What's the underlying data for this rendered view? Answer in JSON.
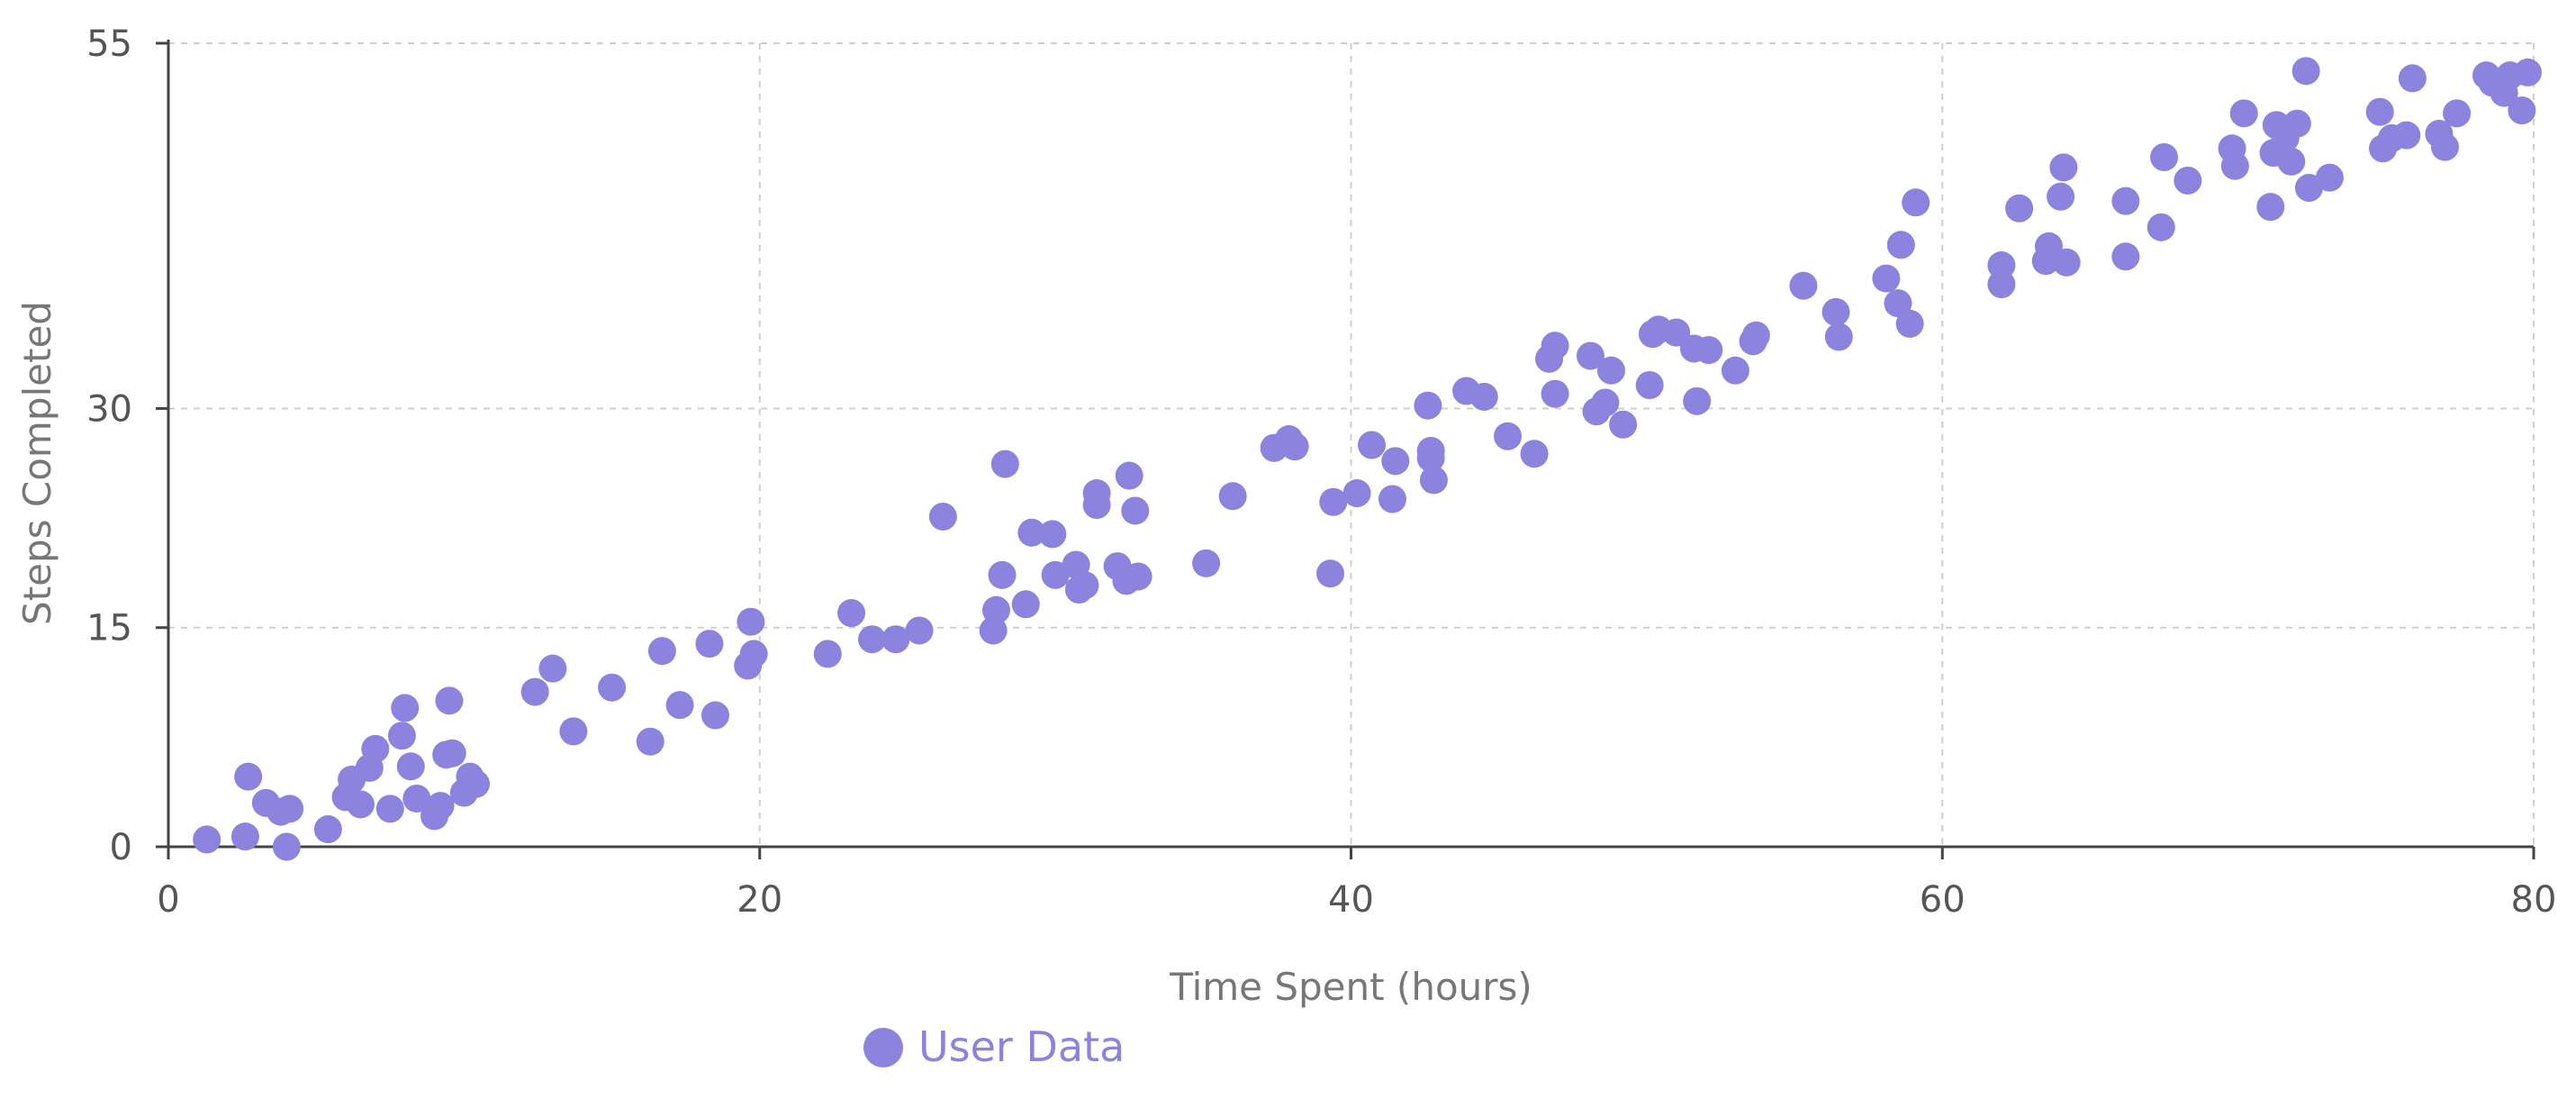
{
  "chart_data": {
    "type": "scatter",
    "title": "",
    "xlabel": "Time Spent (hours)",
    "ylabel": "Steps Completed",
    "xlim": [
      0,
      80
    ],
    "ylim": [
      0,
      55
    ],
    "x_ticks": [
      0,
      20,
      40,
      60,
      80
    ],
    "y_ticks": [
      0,
      15,
      30,
      55
    ],
    "grid": true,
    "legend_position": "bottom",
    "series": [
      {
        "name": "User Data",
        "color": "#8b83dd",
        "points": [
          [
            1.3,
            0.5
          ],
          [
            2.6,
            0.7
          ],
          [
            2.7,
            4.8
          ],
          [
            3.3,
            3.0
          ],
          [
            3.8,
            2.4
          ],
          [
            4.1,
            2.6
          ],
          [
            4.0,
            0.0
          ],
          [
            5.4,
            1.2
          ],
          [
            6.0,
            3.4
          ],
          [
            6.2,
            4.6
          ],
          [
            6.5,
            2.9
          ],
          [
            6.8,
            5.4
          ],
          [
            7.0,
            6.7
          ],
          [
            7.5,
            2.6
          ],
          [
            7.9,
            7.6
          ],
          [
            8.0,
            9.5
          ],
          [
            8.2,
            5.5
          ],
          [
            8.4,
            3.3
          ],
          [
            9.0,
            2.1
          ],
          [
            9.2,
            2.8
          ],
          [
            9.4,
            6.3
          ],
          [
            9.6,
            6.4
          ],
          [
            9.5,
            10.0
          ],
          [
            10.0,
            3.7
          ],
          [
            10.2,
            4.8
          ],
          [
            10.4,
            4.3
          ],
          [
            12.4,
            10.6
          ],
          [
            13.0,
            12.2
          ],
          [
            13.7,
            7.9
          ],
          [
            15.0,
            10.9
          ],
          [
            16.3,
            7.2
          ],
          [
            16.7,
            13.4
          ],
          [
            17.3,
            9.7
          ],
          [
            18.3,
            13.9
          ],
          [
            18.5,
            9.0
          ],
          [
            19.6,
            12.4
          ],
          [
            19.7,
            15.4
          ],
          [
            19.8,
            13.2
          ],
          [
            22.3,
            13.2
          ],
          [
            23.1,
            16.0
          ],
          [
            23.8,
            14.2
          ],
          [
            24.6,
            14.2
          ],
          [
            25.4,
            14.8
          ],
          [
            26.2,
            22.6
          ],
          [
            27.9,
            14.8
          ],
          [
            28.0,
            16.2
          ],
          [
            28.2,
            18.6
          ],
          [
            28.3,
            26.2
          ],
          [
            29.0,
            16.6
          ],
          [
            29.2,
            21.5
          ],
          [
            29.9,
            21.4
          ],
          [
            30.0,
            18.6
          ],
          [
            30.7,
            19.3
          ],
          [
            30.8,
            17.6
          ],
          [
            31.0,
            17.9
          ],
          [
            31.4,
            23.4
          ],
          [
            31.4,
            24.2
          ],
          [
            32.1,
            19.2
          ],
          [
            32.4,
            18.2
          ],
          [
            32.5,
            25.4
          ],
          [
            32.7,
            23.0
          ],
          [
            32.8,
            18.5
          ],
          [
            35.1,
            19.4
          ],
          [
            36.0,
            24.0
          ],
          [
            37.4,
            27.3
          ],
          [
            37.9,
            27.9
          ],
          [
            38.1,
            27.4
          ],
          [
            39.3,
            18.7
          ],
          [
            39.4,
            23.6
          ],
          [
            40.2,
            24.2
          ],
          [
            40.7,
            27.5
          ],
          [
            41.4,
            23.8
          ],
          [
            41.5,
            26.4
          ],
          [
            42.6,
            30.2
          ],
          [
            42.7,
            26.6
          ],
          [
            42.7,
            27.1
          ],
          [
            42.8,
            25.1
          ],
          [
            43.9,
            31.2
          ],
          [
            44.5,
            30.8
          ],
          [
            45.3,
            28.1
          ],
          [
            46.2,
            26.9
          ],
          [
            46.7,
            33.4
          ],
          [
            46.9,
            34.3
          ],
          [
            46.9,
            31.0
          ],
          [
            48.1,
            33.6
          ],
          [
            48.3,
            29.8
          ],
          [
            48.6,
            30.4
          ],
          [
            48.8,
            32.6
          ],
          [
            49.2,
            28.9
          ],
          [
            50.1,
            31.6
          ],
          [
            50.2,
            35.1
          ],
          [
            50.4,
            35.4
          ],
          [
            51.0,
            35.2
          ],
          [
            51.6,
            34.1
          ],
          [
            51.7,
            30.5
          ],
          [
            52.1,
            34.0
          ],
          [
            53.0,
            32.6
          ],
          [
            53.6,
            34.6
          ],
          [
            53.7,
            35.0
          ],
          [
            55.3,
            38.4
          ],
          [
            56.4,
            36.6
          ],
          [
            56.5,
            34.9
          ],
          [
            58.1,
            38.9
          ],
          [
            58.5,
            37.2
          ],
          [
            58.6,
            41.2
          ],
          [
            58.9,
            35.8
          ],
          [
            59.1,
            44.1
          ],
          [
            62.0,
            38.5
          ],
          [
            62.0,
            39.8
          ],
          [
            62.6,
            43.7
          ],
          [
            63.5,
            40.1
          ],
          [
            63.6,
            41.1
          ],
          [
            64.0,
            44.5
          ],
          [
            64.1,
            46.5
          ],
          [
            64.2,
            40.0
          ],
          [
            66.2,
            44.2
          ],
          [
            66.2,
            40.4
          ],
          [
            67.4,
            42.4
          ],
          [
            67.5,
            47.2
          ],
          [
            68.3,
            45.6
          ],
          [
            69.8,
            47.8
          ],
          [
            69.9,
            46.6
          ],
          [
            70.2,
            50.2
          ],
          [
            71.1,
            43.8
          ],
          [
            71.2,
            47.5
          ],
          [
            71.3,
            49.4
          ],
          [
            71.6,
            48.5
          ],
          [
            71.8,
            46.9
          ],
          [
            72.0,
            49.5
          ],
          [
            72.3,
            53.1
          ],
          [
            72.4,
            45.1
          ],
          [
            73.1,
            45.8
          ],
          [
            74.8,
            50.3
          ],
          [
            74.9,
            47.8
          ],
          [
            75.2,
            48.5
          ],
          [
            75.7,
            48.7
          ],
          [
            75.9,
            52.6
          ],
          [
            76.8,
            48.8
          ],
          [
            77.0,
            47.9
          ],
          [
            77.4,
            50.2
          ],
          [
            78.4,
            52.8
          ],
          [
            78.6,
            52.3
          ],
          [
            78.9,
            52.3
          ],
          [
            79.0,
            51.6
          ],
          [
            79.2,
            52.8
          ],
          [
            79.6,
            50.4
          ],
          [
            79.8,
            53.0
          ]
        ]
      }
    ]
  }
}
